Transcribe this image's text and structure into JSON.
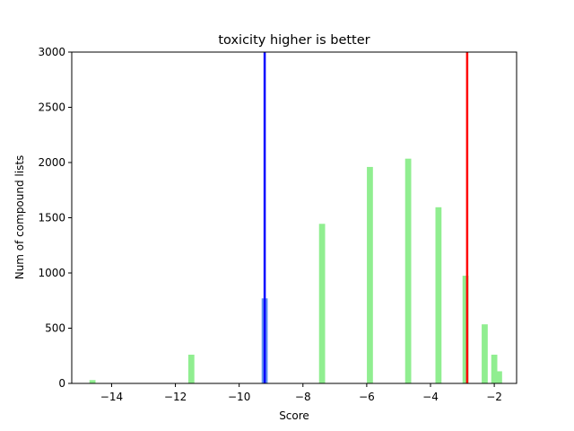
{
  "chart_data": {
    "type": "bar",
    "title": "toxicity higher is better",
    "xlabel": "Score",
    "ylabel": "Num of compound lists",
    "xlim": [
      -15.25,
      -1.3
    ],
    "ylim": [
      0,
      3000
    ],
    "xticks": [
      -14,
      -12,
      -10,
      -8,
      -6,
      -4,
      -2
    ],
    "xtick_labels": [
      "−14",
      "−12",
      "−10",
      "−8",
      "−6",
      "−4",
      "−2"
    ],
    "yticks": [
      0,
      500,
      1000,
      1500,
      2000,
      2500,
      3000
    ],
    "ytick_labels": [
      "0",
      "500",
      "1000",
      "1500",
      "2000",
      "2500",
      "3000"
    ],
    "grid": false,
    "bar_width": 0.19,
    "bar_color": "#90ee90",
    "x": [
      -14.6,
      -11.5,
      -9.2,
      -7.4,
      -5.9,
      -4.7,
      -3.75,
      -2.9,
      -2.3,
      -2.0,
      -1.85
    ],
    "values": [
      30,
      260,
      770,
      1445,
      1960,
      2035,
      1595,
      975,
      535,
      260,
      110
    ],
    "reference_lines": [
      {
        "x": -9.2,
        "color": "#0000ff"
      },
      {
        "x": -2.85,
        "color": "#ff0000"
      }
    ],
    "highlight_bar": {
      "x": -9.2,
      "color": "#6495ed"
    }
  }
}
